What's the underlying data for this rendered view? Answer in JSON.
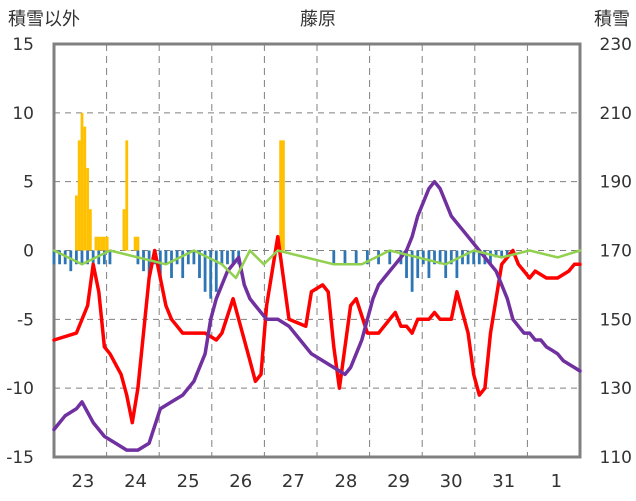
{
  "chart_data": {
    "type": "line",
    "title": "藤原",
    "y_left_label": "積雪以外",
    "y_right_label": "積雪",
    "y_left_ticks": [
      "15",
      "10",
      "5",
      "0",
      "-5",
      "-10",
      "-15"
    ],
    "y_left_range": [
      -15,
      15
    ],
    "y_right_ticks": [
      "230",
      "210",
      "190",
      "170",
      "150",
      "130",
      "110"
    ],
    "y_right_range": [
      110,
      230
    ],
    "x_ticks": [
      "23",
      "24",
      "25",
      "26",
      "27",
      "28",
      "29",
      "30",
      "31",
      "1"
    ],
    "x_range": [
      0,
      188
    ],
    "grid": true,
    "colors": {
      "temperature": "#ff0000",
      "snow_depth": "#7030a0",
      "green_line": "#92d050",
      "precip_bars": "#ffc000",
      "negative_bars": "#2e75b6",
      "frame": "#808080"
    },
    "series": [
      {
        "key": "temperature",
        "axis": "left",
        "x": [
          0,
          8,
          12,
          14,
          16,
          18,
          20,
          24,
          26,
          28,
          30,
          34,
          36,
          38,
          40,
          42,
          44,
          46,
          50,
          54,
          58,
          60,
          64,
          70,
          72,
          74,
          76,
          80,
          84,
          90,
          92,
          96,
          98,
          100,
          102,
          104,
          106,
          108,
          112,
          116,
          120,
          122,
          124,
          126,
          128,
          130,
          132,
          134,
          136,
          138,
          140,
          142,
          144,
          148,
          150,
          152,
          154,
          156,
          160,
          164,
          166,
          168,
          170,
          172,
          176,
          180,
          184,
          186,
          188
        ],
        "y": [
          -6.5,
          -6,
          -4,
          -1,
          -3,
          -7,
          -7.5,
          -9,
          -10.5,
          -12.5,
          -10,
          -2,
          0,
          -2,
          -4,
          -5,
          -5.5,
          -6,
          -6,
          -6,
          -6.5,
          -6,
          -3.5,
          -8,
          -9.5,
          -9,
          -4,
          1,
          -5,
          -5.5,
          -3,
          -2.5,
          -3,
          -7,
          -10,
          -7,
          -4,
          -3.5,
          -6,
          -6,
          -5,
          -4.5,
          -5.5,
          -5.5,
          -6,
          -5,
          -5,
          -5,
          -4.5,
          -5,
          -5,
          -5,
          -3,
          -6,
          -9,
          -10.5,
          -10,
          -6,
          -1,
          0,
          -1,
          -1.5,
          -2,
          -1.5,
          -2,
          -2,
          -1.5,
          -1,
          -1
        ],
        "note": "values approximated from pixel trace"
      },
      {
        "key": "snow_depth",
        "axis": "right",
        "x": [
          0,
          4,
          8,
          10,
          14,
          18,
          22,
          26,
          30,
          34,
          38,
          42,
          46,
          50,
          54,
          56,
          58,
          60,
          62,
          64,
          66,
          68,
          70,
          72,
          76,
          80,
          84,
          88,
          92,
          96,
          100,
          104,
          106,
          108,
          110,
          112,
          114,
          116,
          118,
          120,
          122,
          124,
          126,
          128,
          130,
          132,
          134,
          136,
          138,
          140,
          142,
          144,
          146,
          148,
          150,
          152,
          154,
          156,
          158,
          160,
          162,
          164,
          166,
          168,
          170,
          172,
          174,
          176,
          178,
          180,
          182,
          184,
          186,
          188
        ],
        "y": [
          118,
          122,
          124,
          126,
          120,
          116,
          114,
          112,
          112,
          114,
          124,
          126,
          128,
          132,
          140,
          150,
          156,
          160,
          164,
          166,
          168,
          160,
          156,
          154,
          150,
          150,
          148,
          144,
          140,
          138,
          136,
          134,
          136,
          140,
          144,
          150,
          156,
          160,
          162,
          164,
          166,
          168,
          170,
          174,
          180,
          184,
          188,
          190,
          188,
          184,
          180,
          178,
          176,
          174,
          172,
          170,
          168,
          166,
          164,
          160,
          156,
          150,
          148,
          146,
          146,
          144,
          144,
          142,
          141,
          140,
          138,
          137,
          136,
          135
        ],
        "note": "values approximated from pixel trace"
      },
      {
        "key": "green_line",
        "axis": "left",
        "x": [
          0,
          10,
          20,
          30,
          40,
          50,
          60,
          65,
          70,
          75,
          80,
          90,
          100,
          110,
          120,
          130,
          140,
          150,
          160,
          170,
          180,
          188
        ],
        "y": [
          0,
          -1,
          0,
          -0.5,
          -1,
          0,
          -1,
          -2,
          0,
          -1,
          0,
          -0.5,
          -1,
          -1,
          0,
          -0.5,
          -1,
          0,
          -0.5,
          0,
          -0.5,
          0
        ],
        "note": "values approximated from pixel trace"
      },
      {
        "key": "precip_bars",
        "axis": "left",
        "type": "bar",
        "x": [
          8,
          9,
          10,
          11,
          12,
          13,
          15,
          16,
          17,
          18,
          19,
          25,
          26,
          27,
          29,
          30,
          81,
          82
        ],
        "y": [
          4,
          8,
          10,
          9,
          6,
          3,
          1,
          1,
          1,
          1,
          1,
          3,
          8,
          0,
          1,
          1,
          8,
          8
        ],
        "note": "values approximated from pixel trace"
      },
      {
        "key": "negative_bars",
        "axis": "left",
        "type": "bar",
        "x": [
          0,
          2,
          4,
          6,
          8,
          10,
          12,
          14,
          16,
          18,
          20,
          30,
          32,
          34,
          36,
          38,
          40,
          42,
          44,
          46,
          48,
          50,
          52,
          54,
          56,
          58,
          60,
          62,
          64,
          66,
          100,
          104,
          108,
          112,
          116,
          120,
          124,
          126,
          128,
          130,
          132,
          134,
          136,
          138,
          140,
          142,
          144,
          146,
          148,
          150,
          152,
          154,
          156,
          158,
          160,
          162
        ],
        "y": [
          -1,
          -1,
          -1,
          -1.5,
          -1,
          -1,
          -1,
          -1,
          -1,
          -1,
          -1,
          -1,
          -1.5,
          -2,
          -1,
          -2,
          -1,
          -2,
          -1,
          -2,
          -1,
          -1,
          -2,
          -3,
          -3.5,
          -3,
          -1,
          -1,
          -1,
          -1,
          -1,
          -1,
          -1,
          -1,
          -1,
          -1,
          -1,
          -2,
          -3,
          -2,
          -1,
          -2,
          -1,
          -1,
          -2,
          -1,
          -2,
          -1,
          -1,
          -1,
          -1,
          -1,
          -1,
          -0.5,
          -0.5,
          -0.5
        ],
        "note": "values approximated from pixel trace"
      }
    ]
  }
}
